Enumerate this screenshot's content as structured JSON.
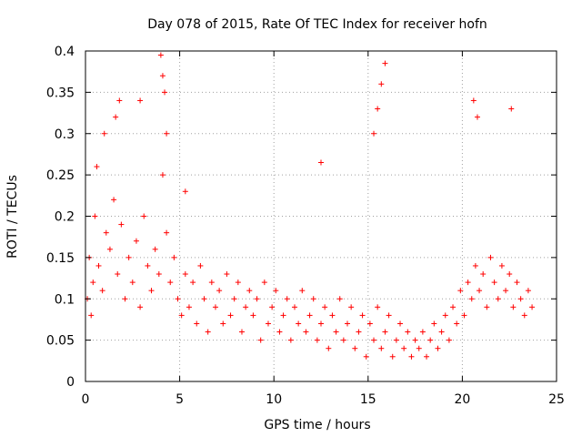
{
  "chart_data": {
    "type": "scatter",
    "title": "Day 078 of 2015, Rate Of TEC Index for receiver hofn",
    "xlabel": "GPS time / hours",
    "ylabel": "ROTI / TECUs",
    "xlim": [
      0,
      25
    ],
    "ylim": [
      0,
      0.4
    ],
    "xticks": [
      "0",
      "5",
      "10",
      "15",
      "20",
      "25"
    ],
    "yticks": [
      "0",
      "0.05",
      "0.1",
      "0.15",
      "0.2",
      "0.25",
      "0.3",
      "0.35",
      "0.4"
    ],
    "grid": true,
    "marker": "+",
    "color": "#ff0000",
    "series": [
      {
        "x": [
          0.1,
          0.2,
          0.3,
          0.4,
          0.5,
          0.7,
          0.9,
          1.1,
          1.3,
          1.5,
          1.7,
          1.9,
          2.1,
          2.3,
          2.5,
          2.7,
          2.9,
          3.1,
          3.3,
          3.5,
          3.7,
          3.9,
          4.1,
          4.3,
          4.5,
          4.7,
          4.9,
          5.1,
          5.3,
          5.5,
          5.7,
          5.9,
          6.1,
          6.3,
          6.5,
          6.7,
          6.9,
          7.1,
          7.3,
          7.5,
          7.7,
          7.9,
          8.1,
          8.3,
          8.5,
          8.7,
          8.9,
          9.1,
          9.3,
          9.5,
          9.7,
          9.9,
          10.1,
          10.3,
          10.5,
          10.7,
          10.9,
          11.1,
          11.3,
          11.5,
          11.7,
          11.9,
          12.1,
          12.3,
          12.5,
          12.7,
          12.9,
          13.1,
          13.3,
          13.5,
          13.7,
          13.9,
          14.1,
          14.3,
          14.5,
          14.7,
          14.9,
          15.1,
          15.3,
          15.5,
          15.7,
          15.9,
          16.1,
          16.3,
          16.5,
          16.7,
          16.9,
          17.1,
          17.3,
          17.5,
          17.7,
          17.9,
          18.1,
          18.3,
          18.5,
          18.7,
          18.9,
          19.1,
          19.3,
          19.5,
          19.7,
          19.9,
          20.1,
          20.3,
          20.5,
          20.7,
          20.9,
          21.1,
          21.3,
          21.5,
          21.7,
          21.9,
          22.1,
          22.3,
          22.5,
          22.7,
          22.9,
          23.1,
          23.3,
          23.5,
          23.7,
          4.0,
          4.1,
          4.2,
          4.3,
          1.8,
          1.6,
          2.9,
          15.3,
          15.5,
          15.7,
          15.9,
          20.6,
          20.8,
          22.6,
          1.0,
          0.6,
          5.3,
          12.5
        ],
        "y": [
          0.1,
          0.15,
          0.08,
          0.12,
          0.2,
          0.14,
          0.11,
          0.18,
          0.16,
          0.22,
          0.13,
          0.19,
          0.1,
          0.15,
          0.12,
          0.17,
          0.09,
          0.2,
          0.14,
          0.11,
          0.16,
          0.13,
          0.25,
          0.18,
          0.12,
          0.15,
          0.1,
          0.08,
          0.13,
          0.09,
          0.12,
          0.07,
          0.14,
          0.1,
          0.06,
          0.12,
          0.09,
          0.11,
          0.07,
          0.13,
          0.08,
          0.1,
          0.12,
          0.06,
          0.09,
          0.11,
          0.08,
          0.1,
          0.05,
          0.12,
          0.07,
          0.09,
          0.11,
          0.06,
          0.08,
          0.1,
          0.05,
          0.09,
          0.07,
          0.11,
          0.06,
          0.08,
          0.1,
          0.05,
          0.07,
          0.09,
          0.04,
          0.08,
          0.06,
          0.1,
          0.05,
          0.07,
          0.09,
          0.04,
          0.06,
          0.08,
          0.03,
          0.07,
          0.05,
          0.09,
          0.04,
          0.06,
          0.08,
          0.03,
          0.05,
          0.07,
          0.04,
          0.06,
          0.03,
          0.05,
          0.04,
          0.06,
          0.03,
          0.05,
          0.07,
          0.04,
          0.06,
          0.08,
          0.05,
          0.09,
          0.07,
          0.11,
          0.08,
          0.12,
          0.1,
          0.14,
          0.11,
          0.13,
          0.09,
          0.15,
          0.12,
          0.1,
          0.14,
          0.11,
          0.13,
          0.09,
          0.12,
          0.1,
          0.08,
          0.11,
          0.09,
          0.395,
          0.37,
          0.35,
          0.3,
          0.34,
          0.32,
          0.34,
          0.3,
          0.33,
          0.36,
          0.385,
          0.34,
          0.32,
          0.33,
          0.3,
          0.26,
          0.23,
          0.265
        ]
      }
    ]
  }
}
